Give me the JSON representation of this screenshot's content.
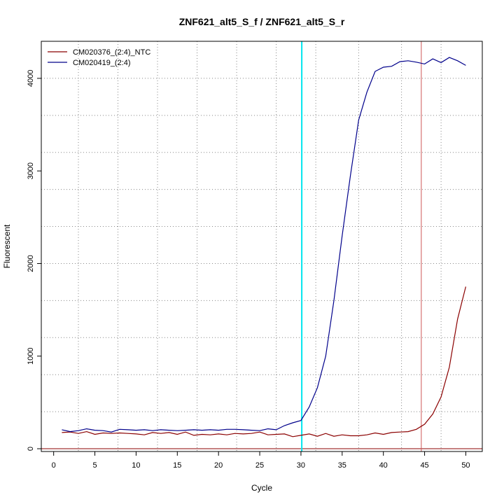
{
  "chart_data": {
    "type": "line",
    "title": "ZNF621_alt5_S_f / ZNF621_alt5_S_r",
    "xlabel": "Cycle",
    "ylabel": "Fluorescent",
    "xlim": [
      -1.5,
      52.0
    ],
    "ylim": [
      -30,
      4400
    ],
    "x_ticks": [
      0,
      5,
      10,
      15,
      20,
      25,
      30,
      35,
      40,
      45,
      50
    ],
    "y_ticks": [
      0,
      1000,
      2000,
      3000,
      4000
    ],
    "x_grid": [
      3,
      7.8,
      12.6,
      17.4,
      22.2,
      27.0,
      31.8,
      37.0,
      42.2,
      47.0
    ],
    "y_grid": [
      0,
      400,
      800,
      1200,
      1600,
      2000,
      2400,
      2800,
      3200,
      3600,
      4000
    ],
    "grid": "dotted",
    "legend_position": "top-left",
    "series": [
      {
        "name": "CM020376_(2:4)_NTC",
        "color": "#8b0000",
        "x": [
          1,
          2,
          3,
          4,
          5,
          6,
          7,
          8,
          9,
          10,
          11,
          12,
          13,
          14,
          15,
          16,
          17,
          18,
          19,
          20,
          21,
          22,
          23,
          24,
          25,
          26,
          27,
          28,
          29,
          30,
          31,
          32,
          33,
          34,
          35,
          36,
          37,
          38,
          39,
          40,
          41,
          42,
          43,
          44,
          45,
          46,
          47,
          48,
          49,
          50
        ],
        "y": [
          175,
          180,
          165,
          185,
          155,
          170,
          165,
          170,
          165,
          160,
          150,
          175,
          165,
          175,
          155,
          180,
          145,
          155,
          150,
          160,
          150,
          165,
          160,
          165,
          180,
          150,
          155,
          160,
          130,
          145,
          160,
          135,
          165,
          135,
          150,
          140,
          140,
          150,
          170,
          155,
          175,
          180,
          185,
          210,
          265,
          375,
          560,
          880,
          1400,
          1750
        ]
      },
      {
        "name": "CM020419_(2:4)",
        "color": "#00008b",
        "x": [
          1,
          2,
          3,
          4,
          5,
          6,
          7,
          8,
          9,
          10,
          11,
          12,
          13,
          14,
          15,
          16,
          17,
          18,
          19,
          20,
          21,
          22,
          23,
          24,
          25,
          26,
          27,
          28,
          29,
          30,
          31,
          32,
          33,
          34,
          35,
          36,
          37,
          38,
          39,
          40,
          41,
          42,
          43,
          44,
          45,
          46,
          47,
          48,
          49,
          50
        ],
        "y": [
          205,
          185,
          195,
          215,
          200,
          195,
          180,
          210,
          205,
          200,
          205,
          195,
          205,
          200,
          195,
          200,
          205,
          200,
          205,
          200,
          210,
          210,
          205,
          200,
          195,
          215,
          205,
          250,
          280,
          305,
          450,
          660,
          1000,
          1600,
          2300,
          2950,
          3550,
          3850,
          4075,
          4120,
          4130,
          4180,
          4190,
          4175,
          4155,
          4210,
          4170,
          4225,
          4190,
          4140
        ]
      }
    ],
    "vlines": [
      {
        "x": 30.1,
        "color": "#00e5ee"
      },
      {
        "x": 44.6,
        "color": "#cd5555"
      }
    ],
    "hlines": [
      {
        "y": 0,
        "color": "#8b0000"
      }
    ]
  }
}
